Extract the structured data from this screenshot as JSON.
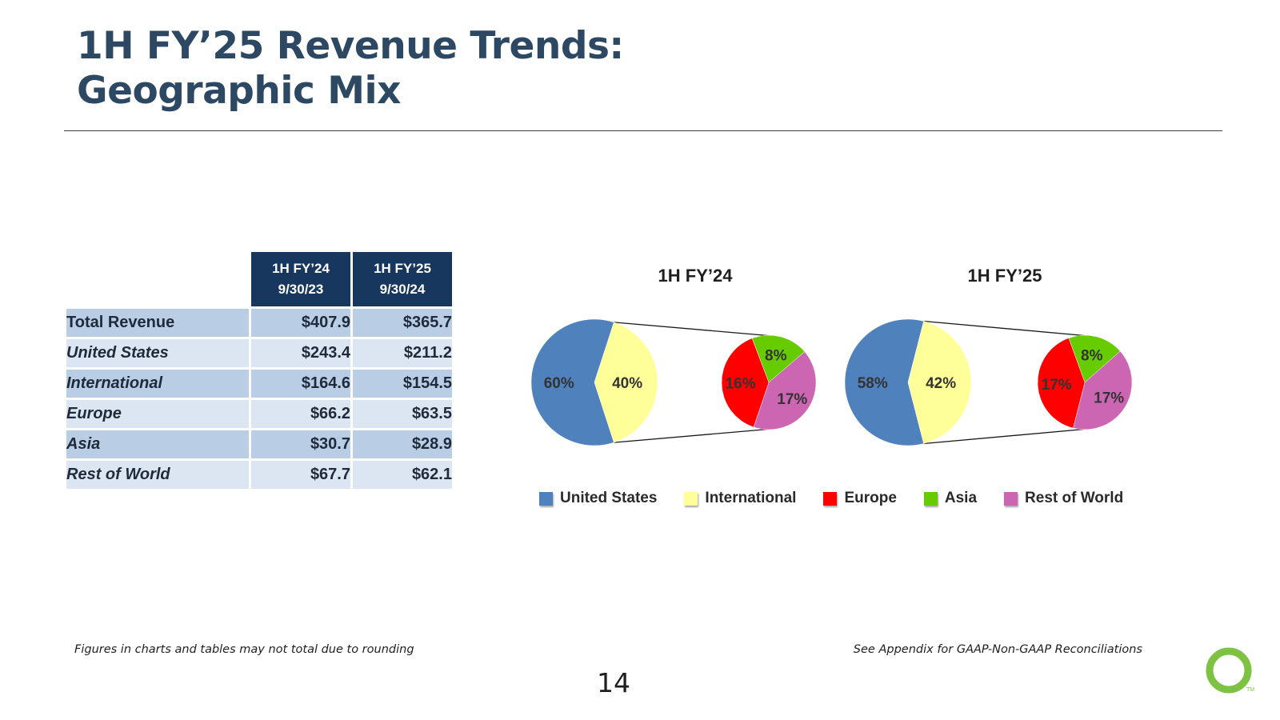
{
  "title": {
    "line1": "1H FY’25 Revenue Trends:",
    "line2": "Geographic Mix"
  },
  "table": {
    "headers": [
      {
        "line1": "1H FY’24",
        "line2": "9/30/23"
      },
      {
        "line1": "1H FY’25",
        "line2": "9/30/24"
      }
    ],
    "rows": [
      {
        "label": "Total Revenue",
        "fy24": "$407.9",
        "fy25": "$365.7"
      },
      {
        "label": "United States",
        "fy24": "$243.4",
        "fy25": "$211.2"
      },
      {
        "label": "International",
        "fy24": "$164.6",
        "fy25": "$154.5"
      },
      {
        "label": "Europe",
        "fy24": "$66.2",
        "fy25": "$63.5"
      },
      {
        "label": "Asia",
        "fy24": "$30.7",
        "fy25": "$28.9"
      },
      {
        "label": "Rest of World",
        "fy24": "$67.7",
        "fy25": "$62.1"
      }
    ]
  },
  "chart_data": [
    {
      "type": "pie",
      "title": "1H FY’24",
      "main": {
        "labels": [
          "United States",
          "International"
        ],
        "values": [
          60,
          40
        ],
        "value_labels": [
          "60%",
          "40%"
        ]
      },
      "breakdown": {
        "labels": [
          "Asia",
          "Rest of World",
          "Europe"
        ],
        "values": [
          8,
          17,
          16
        ],
        "value_labels": [
          "8%",
          "17%",
          "16%"
        ]
      }
    },
    {
      "type": "pie",
      "title": "1H FY’25",
      "main": {
        "labels": [
          "United States",
          "International"
        ],
        "values": [
          58,
          42
        ],
        "value_labels": [
          "58%",
          "42%"
        ]
      },
      "breakdown": {
        "labels": [
          "Asia",
          "Rest of World",
          "Europe"
        ],
        "values": [
          8,
          17,
          17
        ],
        "value_labels": [
          "8%",
          "17%",
          "17%"
        ]
      }
    }
  ],
  "legend": [
    {
      "label": "United States",
      "color": "#4f81bd"
    },
    {
      "label": "International",
      "color": "#ffff99"
    },
    {
      "label": "Europe",
      "color": "#ff0000"
    },
    {
      "label": "Asia",
      "color": "#66cc00"
    },
    {
      "label": "Rest of World",
      "color": "#cc66b3"
    }
  ],
  "colors": {
    "United States": "#4f81bd",
    "International": "#ffff99",
    "Europe": "#ff0000",
    "Asia": "#66cc00",
    "Rest of World": "#cc66b3"
  },
  "footnote_left": "Figures in charts and tables may not total due to rounding",
  "footnote_right": "See Appendix for GAAP-Non-GAAP Reconciliations",
  "page_number": "14",
  "logo": {
    "name": "brand-ring-logo",
    "color": "#7dc242",
    "tm": "TM"
  }
}
